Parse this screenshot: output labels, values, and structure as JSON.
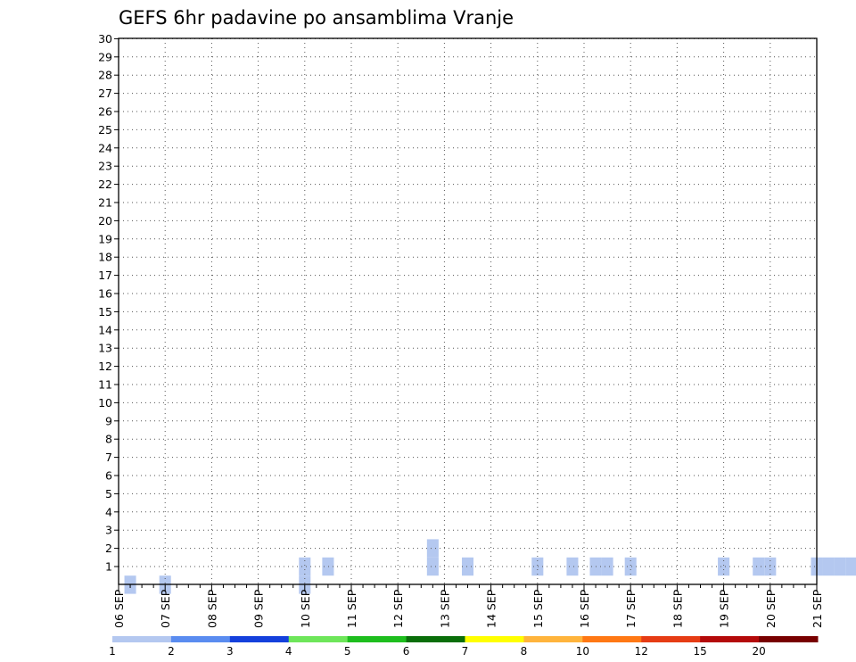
{
  "chart_data": {
    "type": "heatmap",
    "title": "GEFS 6hr padavine po ansamblima Vranje",
    "xlabel": "",
    "ylabel": "",
    "x_unit": "6-hour steps",
    "x_start": "06 SEP 00Z",
    "x_ticks": [
      "06 SEP",
      "07 SEP",
      "08 SEP",
      "09 SEP",
      "10 SEP",
      "11 SEP",
      "12 SEP",
      "13 SEP",
      "14 SEP",
      "15 SEP",
      "16 SEP",
      "17 SEP",
      "18 SEP",
      "19 SEP",
      "20 SEP",
      "21 SEP"
    ],
    "y_ticks": [
      1,
      2,
      3,
      4,
      5,
      6,
      7,
      8,
      9,
      10,
      11,
      12,
      13,
      14,
      15,
      16,
      17,
      18,
      19,
      20,
      21,
      22,
      23,
      24,
      25,
      26,
      27,
      28,
      29,
      30
    ],
    "grid": true,
    "colorbar": {
      "labels": [
        "1",
        "2",
        "3",
        "4",
        "5",
        "6",
        "7",
        "8",
        "10",
        "12",
        "15",
        "20"
      ],
      "colors": [
        "#b4c8f0",
        "#5a8cf0",
        "#1440dc",
        "#6ee65a",
        "#1ebe1e",
        "#0a6e0a",
        "#ffff00",
        "#ffb43c",
        "#ff7814",
        "#e63c14",
        "#b40a0a",
        "#780000"
      ]
    },
    "cells_note": "cells: [step, member, colorbar class index]",
    "cells": [
      [
        1,
        0,
        0
      ],
      [
        4,
        0,
        0
      ],
      [
        16,
        0,
        0
      ],
      [
        16,
        1,
        0
      ],
      [
        18,
        1,
        0
      ],
      [
        27,
        1,
        0
      ],
      [
        27,
        2,
        0
      ],
      [
        30,
        1,
        0
      ],
      [
        36,
        1,
        0
      ],
      [
        39,
        1,
        0
      ],
      [
        41,
        1,
        0
      ],
      [
        42,
        1,
        0
      ],
      [
        44,
        1,
        0
      ],
      [
        52,
        1,
        0
      ],
      [
        55,
        1,
        0
      ],
      [
        56,
        1,
        0
      ],
      [
        60,
        1,
        0
      ],
      [
        61,
        1,
        0
      ],
      [
        62,
        1,
        0
      ],
      [
        63,
        1,
        0
      ],
      [
        64,
        1,
        0
      ],
      [
        68,
        1,
        0
      ],
      [
        69,
        1,
        0
      ],
      [
        70,
        1,
        0
      ],
      [
        71,
        1,
        0
      ],
      [
        72,
        1,
        0
      ],
      [
        74,
        1,
        0
      ],
      [
        75,
        1,
        0
      ],
      [
        76,
        1,
        0
      ],
      [
        78,
        1,
        0
      ],
      [
        80,
        1,
        0
      ],
      [
        81,
        1,
        0
      ],
      [
        83,
        1,
        0
      ],
      [
        84,
        1,
        0
      ],
      [
        86,
        1,
        0
      ],
      [
        87,
        1,
        0
      ],
      [
        88,
        1,
        0
      ],
      [
        89,
        1,
        0
      ],
      [
        91,
        1,
        0
      ],
      [
        92,
        1,
        0
      ],
      [
        92,
        2,
        0
      ],
      [
        93,
        1,
        0
      ],
      [
        94,
        1,
        0
      ],
      [
        96,
        1,
        0
      ],
      [
        97,
        1,
        0
      ],
      [
        100,
        1,
        0
      ],
      [
        103,
        1,
        0
      ],
      [
        104,
        1,
        0
      ],
      [
        105,
        1,
        0
      ],
      [
        106,
        1,
        0
      ],
      [
        107,
        1,
        0
      ],
      [
        109,
        1,
        0
      ],
      [
        110,
        1,
        0
      ],
      [
        112,
        1,
        0
      ],
      [
        113,
        1,
        0
      ],
      [
        114,
        1,
        0
      ],
      [
        116,
        1,
        0
      ],
      [
        118,
        1,
        0
      ],
      [
        119,
        1,
        0
      ],
      [
        120,
        1,
        0
      ],
      [
        120,
        2,
        0
      ],
      [
        121,
        1,
        0
      ],
      [
        124,
        1,
        0
      ],
      [
        125,
        1,
        0
      ],
      [
        126,
        1,
        0
      ],
      [
        127,
        1,
        0
      ],
      [
        128,
        1,
        0
      ],
      [
        130,
        1,
        0
      ],
      [
        131,
        1,
        0
      ],
      [
        132,
        1,
        0
      ],
      [
        134,
        1,
        0
      ],
      [
        135,
        1,
        0
      ],
      [
        136,
        1,
        0
      ],
      [
        137,
        1,
        0
      ],
      [
        138,
        1,
        0
      ],
      [
        139,
        1,
        0
      ],
      [
        140,
        1,
        0
      ],
      [
        141,
        1,
        0
      ],
      [
        142,
        1,
        0
      ],
      [
        144,
        1,
        0
      ],
      [
        145,
        1,
        0
      ],
      [
        146,
        1,
        0
      ],
      [
        148,
        1,
        0
      ],
      [
        149,
        1,
        0
      ],
      [
        150,
        1,
        0
      ],
      [
        152,
        1,
        0
      ],
      [
        153,
        1,
        0
      ],
      [
        154,
        1,
        0
      ],
      [
        155,
        1,
        0
      ],
      [
        156,
        1,
        0
      ],
      [
        158,
        1,
        0
      ],
      [
        159,
        1,
        0
      ],
      [
        160,
        1,
        0
      ],
      [
        161,
        1,
        0
      ],
      [
        162,
        1,
        0
      ],
      [
        164,
        1,
        0
      ],
      [
        165,
        1,
        0
      ],
      [
        166,
        1,
        0
      ],
      [
        167,
        1,
        0
      ],
      [
        168,
        1,
        0
      ],
      [
        169,
        1,
        0
      ],
      [
        170,
        1,
        0
      ],
      [
        171,
        1,
        0
      ],
      [
        172,
        1,
        0
      ],
      [
        173,
        1,
        0
      ],
      [
        174,
        1,
        0
      ],
      [
        175,
        1,
        0
      ],
      [
        176,
        1,
        0
      ],
      [
        177,
        1,
        0
      ],
      [
        178,
        1,
        0
      ],
      [
        179,
        1,
        0
      ],
      [
        180,
        1,
        0
      ]
    ]
  }
}
